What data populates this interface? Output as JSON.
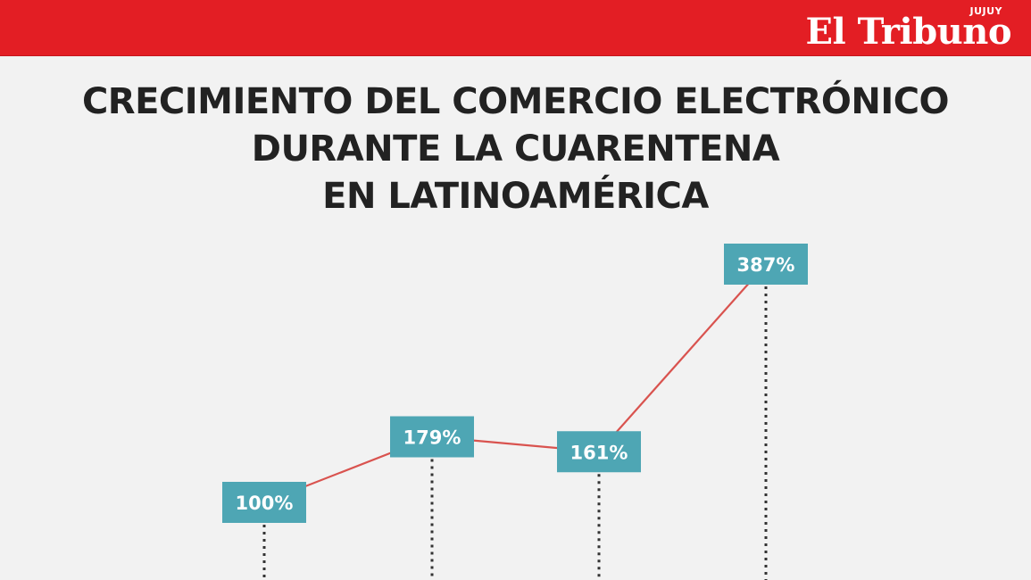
{
  "header": {
    "brand": "El Tribuno",
    "brand_region": "JUJUY",
    "bar_color": "#e31e24"
  },
  "chart_data": {
    "type": "line",
    "title_lines": [
      "CRECIMIENTO DEL COMERCIO ELECTRÓNICO",
      "DURANTE LA CUARENTENA",
      "EN LATINOAMÉRICA"
    ],
    "series": [
      {
        "values": [
          100,
          179,
          161,
          387
        ],
        "labels": [
          "100%",
          "179%",
          "161%",
          "387%"
        ]
      }
    ],
    "ylim": [
      100,
      387
    ],
    "grid": false,
    "line_color": "#d9534f",
    "label_box_color": "#4ea6b4",
    "label_text_color": "#ffffff",
    "drop_line_color": "#333333"
  }
}
